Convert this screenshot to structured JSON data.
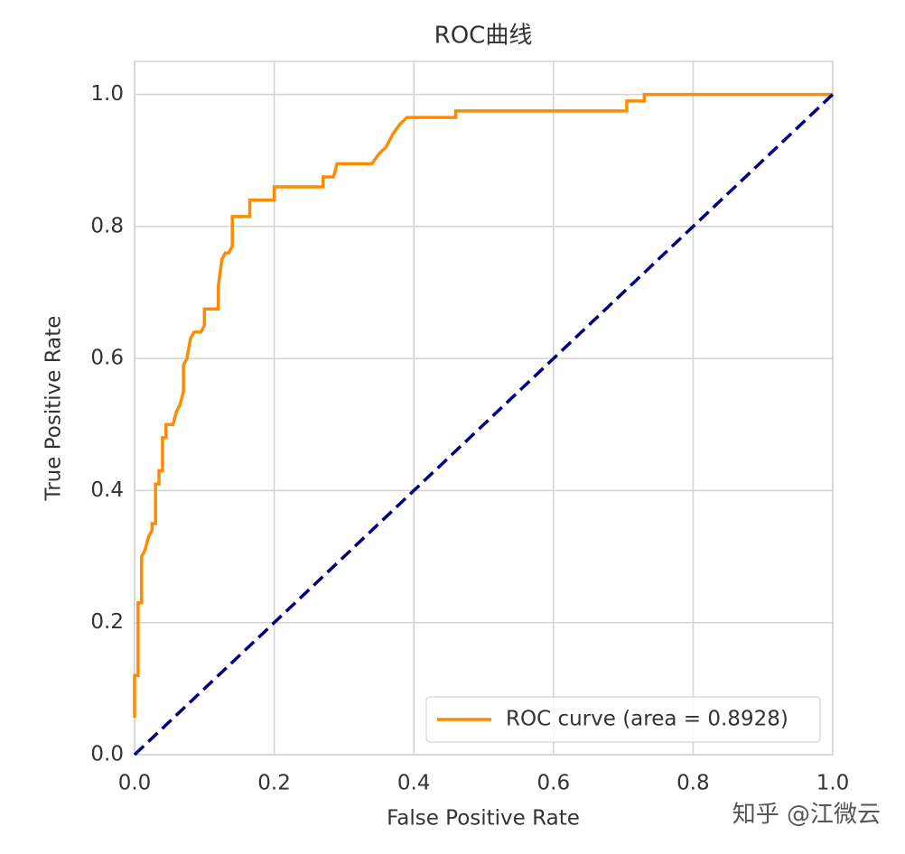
{
  "chart_data": {
    "type": "line",
    "title": "ROC曲线",
    "xlabel": "False Positive Rate",
    "ylabel": "True Positive Rate",
    "xlim": [
      0,
      1
    ],
    "ylim": [
      0,
      1.05
    ],
    "xticks": [
      {
        "value": 0,
        "label": "0.0"
      },
      0.2,
      0.4,
      0.6,
      0.8,
      {
        "value": 1,
        "label": "1.0"
      }
    ],
    "yticks": [
      {
        "value": 0,
        "label": "0.0"
      },
      0.2,
      0.4,
      0.6,
      0.8,
      {
        "value": 1,
        "label": "1.0"
      }
    ],
    "grid": true,
    "legend": "lower right",
    "series": [
      {
        "name": "ROC curve (area = 0.8928)",
        "color": "#ff8c00",
        "dashed": false,
        "x": [
          0,
          0,
          0.005,
          0.005,
          0.01,
          0.01,
          0.015,
          0.02,
          0.025,
          0.025,
          0.03,
          0.03,
          0.035,
          0.035,
          0.04,
          0.04,
          0.045,
          0.045,
          0.055,
          0.06,
          0.065,
          0.07,
          0.07,
          0.075,
          0.08,
          0.085,
          0.095,
          0.1,
          0.1,
          0.12,
          0.12,
          0.125,
          0.13,
          0.135,
          0.14,
          0.14,
          0.165,
          0.165,
          0.2,
          0.2,
          0.27,
          0.27,
          0.285,
          0.29,
          0.34,
          0.35,
          0.36,
          0.37,
          0.38,
          0.39,
          0.46,
          0.46,
          0.705,
          0.705,
          0.73,
          0.73,
          1.0
        ],
        "y": [
          0.056,
          0.12,
          0.12,
          0.23,
          0.23,
          0.3,
          0.31,
          0.33,
          0.34,
          0.35,
          0.35,
          0.41,
          0.41,
          0.43,
          0.43,
          0.48,
          0.48,
          0.5,
          0.5,
          0.52,
          0.53,
          0.55,
          0.59,
          0.6,
          0.63,
          0.64,
          0.64,
          0.65,
          0.675,
          0.675,
          0.71,
          0.75,
          0.76,
          0.76,
          0.77,
          0.815,
          0.815,
          0.84,
          0.84,
          0.86,
          0.86,
          0.875,
          0.875,
          0.895,
          0.895,
          0.91,
          0.92,
          0.94,
          0.955,
          0.965,
          0.965,
          0.975,
          0.975,
          0.99,
          0.99,
          1.0,
          1.0
        ]
      },
      {
        "color": "#000080",
        "dashed": true,
        "x": [
          0,
          1
        ],
        "y": [
          0,
          1
        ]
      }
    ],
    "watermark": "知乎 @江微云"
  }
}
